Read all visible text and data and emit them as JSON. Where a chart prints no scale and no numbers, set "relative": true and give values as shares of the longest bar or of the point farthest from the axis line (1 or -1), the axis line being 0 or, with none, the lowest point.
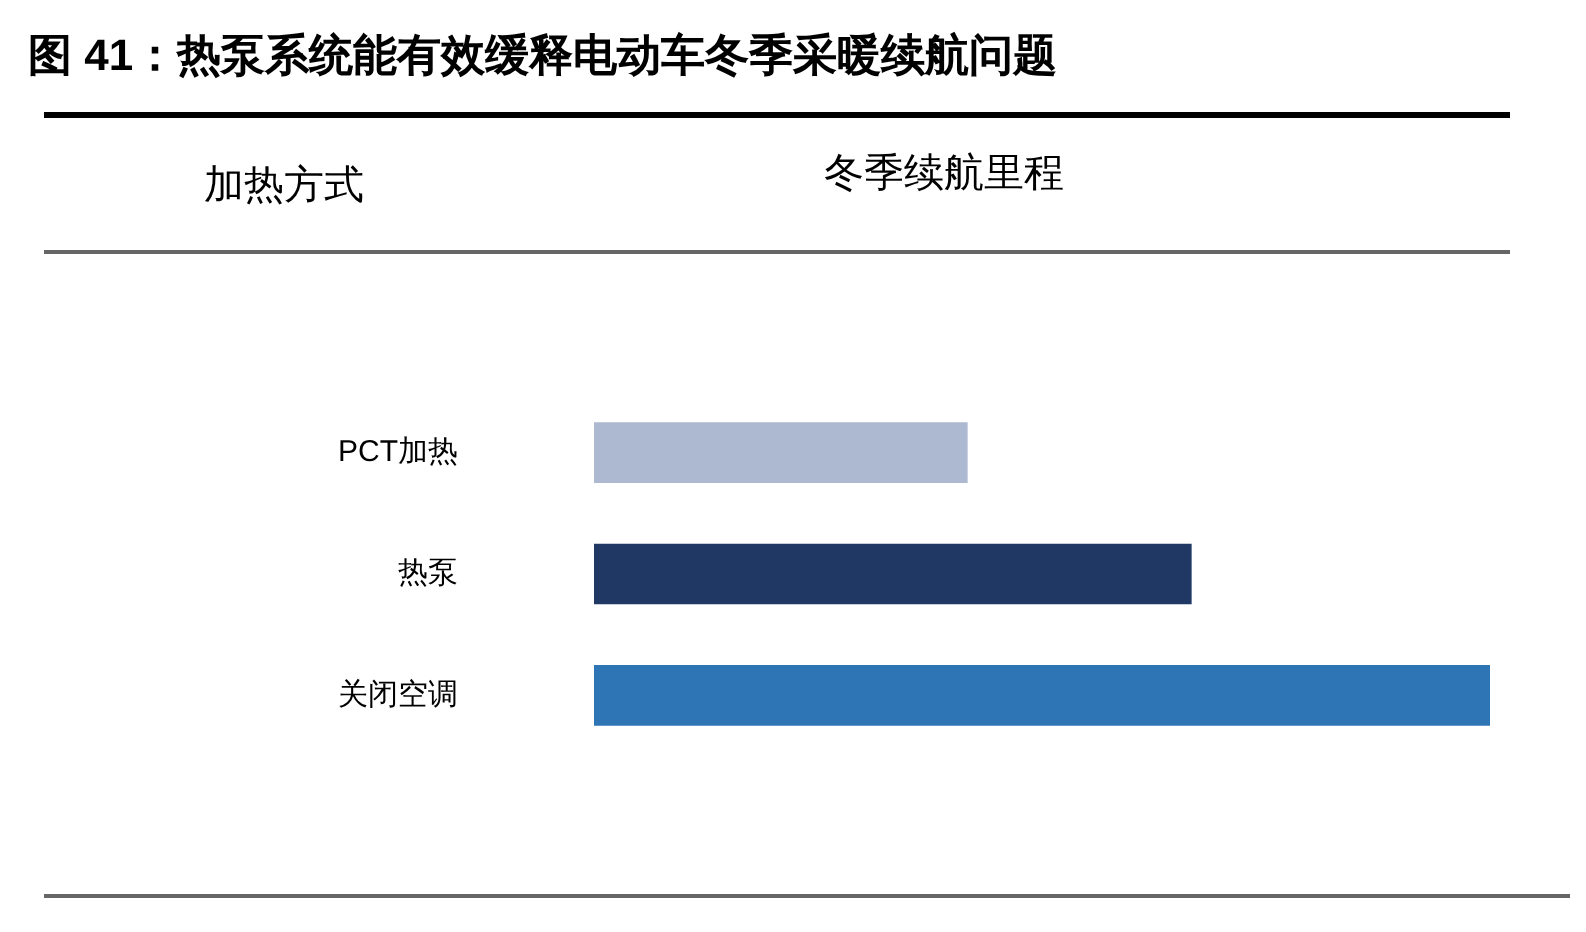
{
  "chart_data": {
    "type": "bar",
    "orientation": "horizontal",
    "relative": true,
    "title": "图 41：热泵系统能有效缓释电动车冬季采暖续航问题",
    "ylabel": "加热方式",
    "xlabel": "冬季续航里程",
    "categories": [
      "PCT加热",
      "热泵",
      "关闭空调"
    ],
    "values": [
      0.417,
      0.667,
      1
    ],
    "colors": [
      "#adb9d0",
      "#1f3864",
      "#2e75b6"
    ]
  }
}
